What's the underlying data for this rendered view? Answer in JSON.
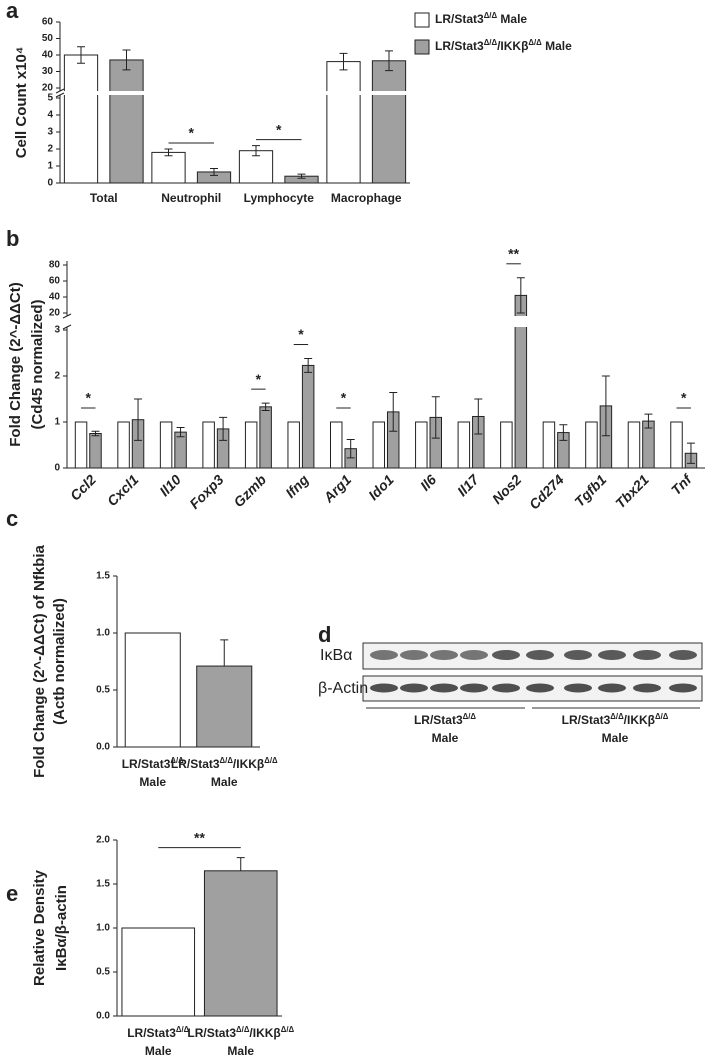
{
  "chart_data": [
    {
      "panel": "a",
      "type": "bar",
      "ylabel": [
        "Cell Count x10⁴"
      ],
      "categories": [
        "Total",
        "Neutrophil",
        "Lymphocyte",
        "Macrophage"
      ],
      "series": [
        {
          "name": "LR/Stat3Δ/Δ Male",
          "color": "#ffffff",
          "values": [
            40,
            1.8,
            1.9,
            36
          ],
          "errors": [
            5,
            0.2,
            0.3,
            5
          ]
        },
        {
          "name": "LR/Stat3Δ/Δ/IKKβΔ/Δ Male",
          "color": "#a0a0a0",
          "values": [
            37,
            0.65,
            0.4,
            36.5
          ],
          "errors": [
            6,
            0.2,
            0.12,
            6
          ]
        }
      ],
      "ylim": [
        0,
        60
      ],
      "ybreak": [
        5,
        20
      ],
      "yticks": [
        0,
        1,
        2,
        3,
        4,
        5,
        20,
        30,
        40,
        50,
        60
      ],
      "significance": [
        {
          "category": "Neutrophil",
          "label": "*"
        },
        {
          "category": "Lymphocyte",
          "label": "*"
        }
      ]
    },
    {
      "panel": "b",
      "type": "bar",
      "ylabel": [
        "Fold Change (2^-ΔΔCt)",
        "(Cd45 normalized)"
      ],
      "categories": [
        "Ccl2",
        "Cxcl1",
        "Il10",
        "Foxp3",
        "Gzmb",
        "Ifng",
        "Arg1",
        "Ido1",
        "Il6",
        "Il17",
        "Nos2",
        "Cd274",
        "Tgfb1",
        "Tbx21",
        "Tnf"
      ],
      "series": [
        {
          "color": "#ffffff",
          "values": [
            1,
            1,
            1,
            1,
            1,
            1,
            1,
            1,
            1,
            1,
            1,
            1,
            1,
            1,
            1
          ]
        },
        {
          "color": "#a0a0a0",
          "values": [
            0.75,
            1.05,
            0.78,
            0.85,
            1.33,
            2.23,
            0.42,
            1.22,
            1.1,
            1.12,
            42,
            0.77,
            1.35,
            1.02,
            0.32
          ],
          "errors": [
            0.05,
            0.45,
            0.1,
            0.25,
            0.08,
            0.15,
            0.2,
            0.42,
            0.45,
            0.38,
            22,
            0.17,
            0.65,
            0.15,
            0.22
          ]
        }
      ],
      "ylim": [
        0,
        85
      ],
      "ybreak": [
        3,
        20
      ],
      "yticks": [
        0,
        1,
        2,
        3,
        20,
        40,
        60,
        80
      ],
      "significance": [
        {
          "category": "Ccl2",
          "label": "*"
        },
        {
          "category": "Gzmb",
          "label": "*"
        },
        {
          "category": "Ifng",
          "label": "*"
        },
        {
          "category": "Arg1",
          "label": "*"
        },
        {
          "category": "Nos2",
          "label": "**"
        },
        {
          "category": "Tnf",
          "label": "*"
        }
      ]
    },
    {
      "panel": "c",
      "type": "bar",
      "ylabel": [
        "Fold Change (2^-ΔΔCt) of Nfkbia",
        "(Actb normalized)"
      ],
      "categories": [
        [
          "LR/Stat3Δ/Δ",
          "Male"
        ],
        [
          "LR/Stat3Δ/Δ/IKKβΔ/Δ",
          "Male"
        ]
      ],
      "values": [
        1,
        0.71
      ],
      "errors": [
        null,
        0.23
      ],
      "colors": [
        "#ffffff",
        "#a0a0a0"
      ],
      "ylim": [
        0,
        1.5
      ],
      "yticks": [
        {
          "value": 0,
          "label": "0.0"
        },
        0.5,
        {
          "value": 1,
          "label": "1.0"
        },
        1.5
      ]
    },
    {
      "panel": "e",
      "type": "bar",
      "ylabel": [
        "Relative Density",
        "IκBα/β-actin"
      ],
      "categories": [
        [
          "LR/Stat3Δ/Δ",
          "Male"
        ],
        [
          "LR/Stat3Δ/Δ/IKKβΔ/Δ",
          "Male"
        ]
      ],
      "values": [
        1,
        1.65
      ],
      "errors": [
        null,
        0.15
      ],
      "colors": [
        "#ffffff",
        "#a0a0a0"
      ],
      "ylim": [
        0,
        2
      ],
      "yticks": [
        {
          "value": 0,
          "label": "0.0"
        },
        0.5,
        {
          "value": 1,
          "label": "1.0"
        },
        1.5,
        {
          "value": 2,
          "label": "2.0"
        }
      ],
      "significance": [
        {
          "label": "**"
        }
      ]
    }
  ],
  "blot": {
    "panel": "d",
    "rows": [
      "IκBα",
      "β-Actin"
    ],
    "groups": [
      [
        "LR/Stat3Δ/Δ",
        "Male"
      ],
      [
        "LR/Stat3Δ/Δ/IKKβΔ/Δ",
        "Male"
      ]
    ]
  }
}
